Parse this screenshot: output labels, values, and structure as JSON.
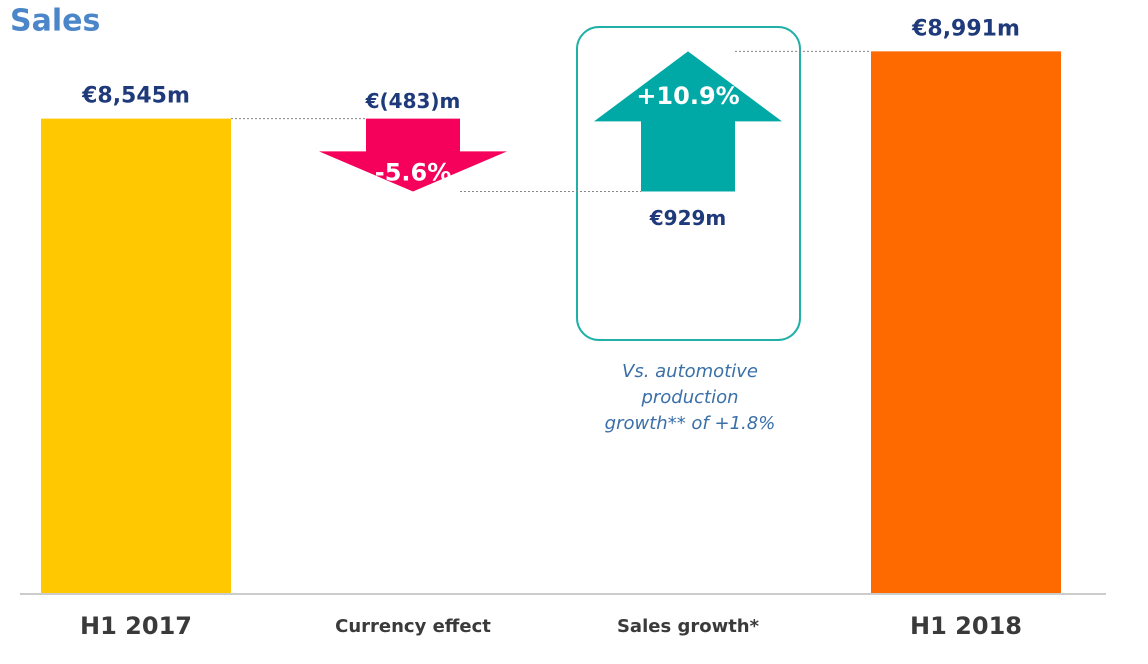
{
  "chart_data": {
    "type": "waterfall",
    "title": "Sales",
    "categories": [
      "H1 2017",
      "Currency effect",
      "Sales growth*",
      "H1 2018"
    ],
    "values": [
      8545,
      -483,
      929,
      8991
    ],
    "value_labels": [
      "€8,545m",
      "€(483)m",
      "€929m",
      "€8,991m"
    ],
    "colors": [
      "#ffc800",
      "#f5005a",
      "#00a9a5",
      "#ff6a00"
    ],
    "percent_values": [
      -5.6,
      10.9
    ],
    "percent_labels": [
      "-5.6%",
      "+10.9%"
    ],
    "annotation": [
      "Vs. automotive",
      "production",
      "growth** of +1.8%"
    ],
    "ylim": [
      5400,
      9000
    ]
  }
}
